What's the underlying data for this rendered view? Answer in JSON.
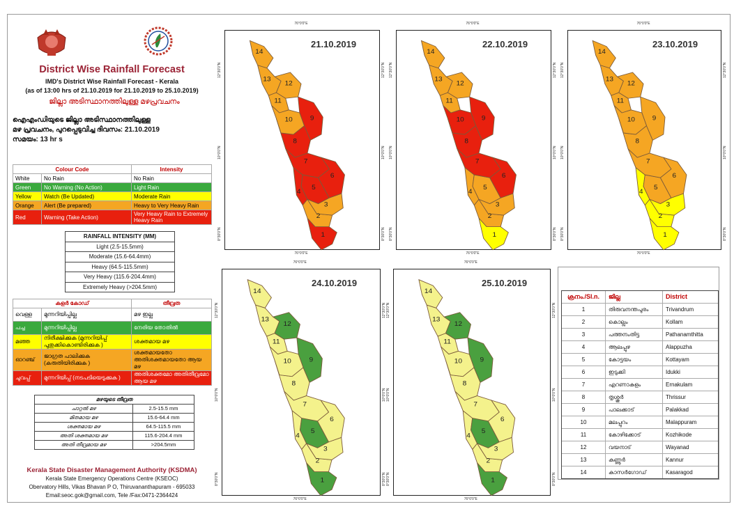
{
  "header": {
    "title": "District Wise Rainfall Forecast",
    "subtitle": "IMD's District Wise Rainfall Forecast - Kerala",
    "issued": "(as of 13:00 hrs of 21.10.2019  for 21.10.2019  to 25.10.2019)",
    "ml_title": "ജില്ലാ അടിസ്ഥാനത്തിലുള്ള മഴപ്രവചനം",
    "ml_line1": "ഐഎംഡിയുടെ ജില്ലാ   അടിസ്ഥാനത്തിലുള്ള",
    "ml_line2": "മഴ പ്രവചനം, പുറപ്പെടുവിച്ച   ദിവസം: 21.10.2019",
    "ml_line3": "സമയം: 13 hr s"
  },
  "colour_code": {
    "head_code": "Colour Code",
    "head_intensity": "Intensity",
    "rows": [
      {
        "colour": "White",
        "code": "No Rain",
        "intensity": "No Rain",
        "bg": "#ffffff",
        "fg": "#000000"
      },
      {
        "colour": "Green",
        "code": "No Warning (No Action)",
        "intensity": "Light Rain",
        "bg": "#3aa93d",
        "fg": "#ffffff"
      },
      {
        "colour": "Yellow",
        "code": "Watch (Be Updated)",
        "intensity": "Moderate Rain",
        "bg": "#ffff00",
        "fg": "#000000"
      },
      {
        "colour": "Orange",
        "code": "Alert (Be prepared)",
        "intensity": "Heavy to Very Heavy Rain",
        "bg": "#f5a623",
        "fg": "#000000"
      },
      {
        "colour": "Red",
        "code": "Warning (Take Action)",
        "intensity": "Very Heavy Rain to Extremely Heavy Rain",
        "bg": "#e8200e",
        "fg": "#ffffff"
      }
    ]
  },
  "rainfall_intensity": {
    "head": "RAINFALL INTENSITY (MM)",
    "rows": [
      "Light (2.5-15.5mm)",
      "Moderate (15.6-64.4mm)",
      "Heavy (64.5-115.5mm)",
      "Very Heavy (115.6-204.4mm)",
      "Extremely Heavy (>204.5mm)"
    ]
  },
  "colour_code_ml": {
    "head_code": "കളർ കോഡ്",
    "head_intensity": "തീവ്രത",
    "rows": [
      {
        "colour": "വെള്ള",
        "code": "മുന്നറിയിപ്പില്ല",
        "intensity": "മഴ ഇല്ല",
        "bg": "#ffffff",
        "fg": "#000000"
      },
      {
        "colour": "പച്ച",
        "code": "മുന്നറിയിപ്പില്ല",
        "intensity": "നേരിയ തോതിൽ",
        "bg": "#3aa93d",
        "fg": "#ffffff"
      },
      {
        "colour": "മഞ്ഞ",
        "code": "നിരീക്ഷിക്കുക (മുന്നറിയിപ്പ് പുതുക്കികൊണ്ടിരിക്കുക )",
        "intensity": "ശക്തമായ മഴ",
        "bg": "#ffff00",
        "fg": "#000000"
      },
      {
        "colour": "ഓറഞ്ച്",
        "code": "ജാഗ്രത പാലിക്കുക (കരുതിയിരിക്കുക )",
        "intensity": "ശക്തമായതോ അതിശക്തമായതോ ആയ മഴ",
        "bg": "#f5a623",
        "fg": "#000000"
      },
      {
        "colour": "ചുവപ്പ്",
        "code": "മുന്നറിയിപ്പ് (നടപടിയെടുക്കുക )",
        "intensity": "അതിശക്തമോ അതിതീവ്രമോ ആയ മഴ",
        "bg": "#e8200e",
        "fg": "#ffffff"
      }
    ]
  },
  "rainfall_intensity_ml": {
    "head": "മഴയുടെ തീവ്രത",
    "rows": [
      {
        "label": "ചാറ്റൽ മഴ",
        "value": "2.5-15.5 mm"
      },
      {
        "label": "മിതമായ മഴ",
        "value": "15.6-64.4 mm"
      },
      {
        "label": "ശക്തമായ മഴ",
        "value": "64.5-115.5 mm"
      },
      {
        "label": "അതി ശക്തമായ മഴ",
        "value": "115.6-204.4 mm"
      },
      {
        "label": "അതി തീവ്രമായ മഴ",
        "value": ">204.5mm"
      }
    ]
  },
  "footer": {
    "org": "Kerala State Disaster Management Authority (KSDMA)",
    "centre": "Kerala State Emergency Operations Centre (KSEOC)",
    "address": "Obervatory Hills, Vikas Bhavan P O, Thiruvananthapuram - 695033",
    "contact": "Email:seoc.gok@gmail.com, Tele /Fax:0471-2364424"
  },
  "colors": {
    "red": "#e8200e",
    "orange": "#f5a623",
    "yellow": "#ffff00",
    "lightyellow": "#f4f28c",
    "green": "#4aa03f"
  },
  "ticks": {
    "lon": "76°0'0\"E",
    "lat_top": "12°30'0\"N",
    "lat_mid": "10°0'0\"N",
    "lat_bot": "8°30'0\"N"
  },
  "maps": [
    {
      "date": "21.10.2019",
      "colors": {
        "14": "orange",
        "13": "orange",
        "12": "orange",
        "11": "orange",
        "10": "orange",
        "9": "red",
        "8": "red",
        "7": "red",
        "6": "red",
        "5": "red",
        "4": "red",
        "3": "orange",
        "2": "orange",
        "1": "red"
      }
    },
    {
      "date": "22.10.2019",
      "colors": {
        "14": "orange",
        "13": "orange",
        "12": "orange",
        "11": "orange",
        "10": "red",
        "9": "red",
        "8": "red",
        "7": "red",
        "6": "red",
        "5": "orange",
        "4": "orange",
        "3": "orange",
        "2": "orange",
        "1": "yellow"
      }
    },
    {
      "date": "23.10.2019",
      "colors": {
        "14": "orange",
        "13": "orange",
        "12": "orange",
        "11": "orange",
        "10": "orange",
        "9": "orange",
        "8": "orange",
        "7": "orange",
        "6": "orange",
        "5": "orange",
        "4": "yellow",
        "3": "yellow",
        "2": "yellow",
        "1": "yellow"
      }
    },
    {
      "date": "24.10.2019",
      "colors": {
        "14": "lightyellow",
        "13": "lightyellow",
        "12": "green",
        "11": "lightyellow",
        "10": "lightyellow",
        "9": "green",
        "8": "lightyellow",
        "7": "lightyellow",
        "6": "lightyellow",
        "5": "green",
        "4": "lightyellow",
        "3": "lightyellow",
        "2": "lightyellow",
        "1": "green"
      }
    },
    {
      "date": "25.10.2019",
      "colors": {
        "14": "lightyellow",
        "13": "lightyellow",
        "12": "green",
        "11": "lightyellow",
        "10": "lightyellow",
        "9": "green",
        "8": "lightyellow",
        "7": "lightyellow",
        "6": "lightyellow",
        "5": "green",
        "4": "lightyellow",
        "3": "lightyellow",
        "2": "lightyellow",
        "1": "green"
      }
    }
  ],
  "districts": {
    "head_no": "ക്രനം./Sl.n.",
    "head_ml": "ജില്ല",
    "head_en": "District",
    "rows": [
      {
        "no": "1",
        "ml": "തിരുവനന്തപുരം",
        "en": "Trivandrum"
      },
      {
        "no": "2",
        "ml": "കൊല്ലം",
        "en": "Kollam"
      },
      {
        "no": "3",
        "ml": "പത്തനംതിട്ട",
        "en": "Pathanamthitta"
      },
      {
        "no": "4",
        "ml": "ആലപ്പുഴ",
        "en": "Alappuzha"
      },
      {
        "no": "5",
        "ml": "കോട്ടയം",
        "en": "Kottayam"
      },
      {
        "no": "6",
        "ml": "ഇടുക്കി",
        "en": "Idukki"
      },
      {
        "no": "7",
        "ml": "എറണാകുളം",
        "en": "Ernakulam"
      },
      {
        "no": "8",
        "ml": "തൃശ്ശൂർ",
        "en": "Thrissur"
      },
      {
        "no": "9",
        "ml": "പാലക്കാട്",
        "en": "Palakkad"
      },
      {
        "no": "10",
        "ml": "മലപ്പുറം",
        "en": "Malappuram"
      },
      {
        "no": "11",
        "ml": "കോഴിക്കോട്",
        "en": "Kozhikode"
      },
      {
        "no": "12",
        "ml": "വയനാട്",
        "en": "Wayanad"
      },
      {
        "no": "13",
        "ml": "കണ്ണൂർ",
        "en": "Kannur"
      },
      {
        "no": "14",
        "ml": "കാസർഗോഡ്",
        "en": "Kasaragod"
      }
    ]
  }
}
